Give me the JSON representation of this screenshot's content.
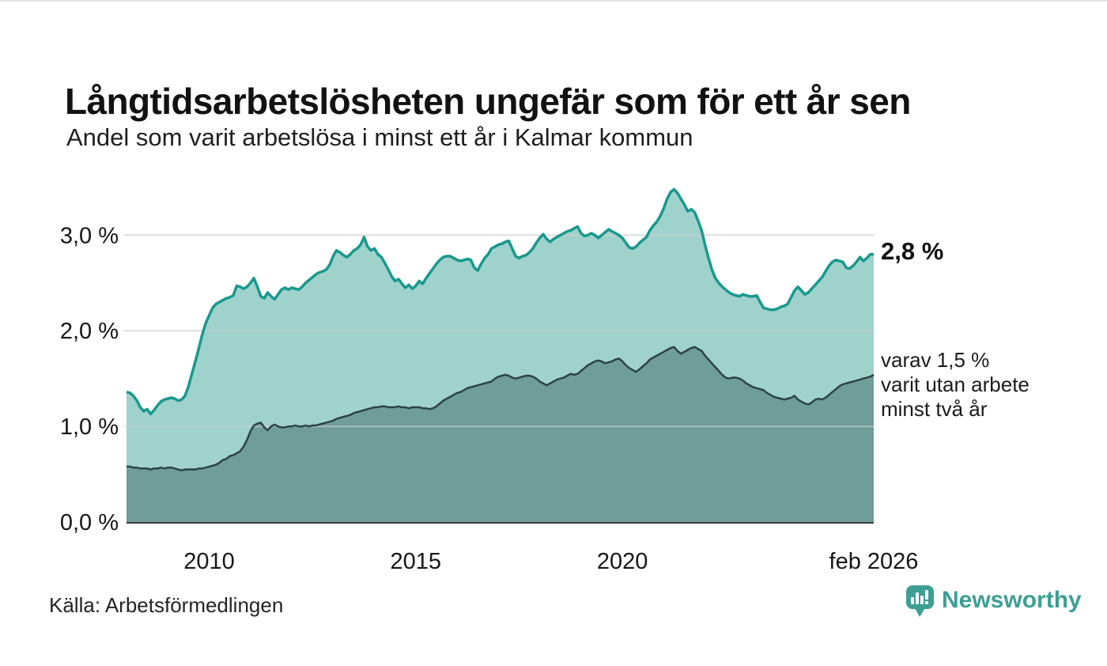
{
  "header": {
    "title": "Långtidsarbetslösheten ungefär som för ett år sen",
    "subtitle": "Andel som varit arbetslösa i minst ett år i Kalmar kommun"
  },
  "annotations": {
    "primary": "2,8 %",
    "secondary": "varav 1,5 %\nvarit utan arbete\nminst två år"
  },
  "footer": {
    "source": "Källa: Arbetsförmedlingen",
    "brand": "Newsworthy"
  },
  "colors": {
    "line_primary": "#19998d",
    "fill_primary": "#a0d2cc",
    "line_secondary": "#2d4344",
    "fill_secondary": "#6f9d99",
    "gridline": "rgba(204,204,204,0.65)",
    "axis_line": "#3b3b3b",
    "text": "#161616",
    "brand": "#3d9e94"
  },
  "chart_data": {
    "type": "area",
    "title": "Långtidsarbetslösheten ungefär som för ett år sen",
    "subtitle": "Andel som varit arbetslösa i minst ett år i Kalmar kommun",
    "grid": true,
    "legend_position": "right-annotations",
    "x_axis": {
      "range": [
        2008.0,
        2026.0833
      ],
      "ticks": [
        {
          "label": "2010",
          "x": 2010
        },
        {
          "label": "2015",
          "x": 2015
        },
        {
          "label": "2020",
          "x": 2020
        },
        {
          "label": "feb 2026",
          "x": 2026.0833
        }
      ]
    },
    "y_axis": {
      "unit": "%",
      "range": [
        0,
        3.54
      ],
      "ticks": [
        {
          "label": "0,0 %",
          "value": 0
        },
        {
          "label": "1,0 %",
          "value": 1
        },
        {
          "label": "2,0 %",
          "value": 2
        },
        {
          "label": "3,0 %",
          "value": 3
        }
      ]
    },
    "series": [
      {
        "name": "Andel som varit arbetslösa i minst ett år",
        "latest_label": "2,8 %",
        "latest_value": 2.8,
        "color": "#19998d",
        "fill": "#a0d2cc",
        "start_year": 2008,
        "step_months": 1,
        "values": [
          1.36,
          1.35,
          1.32,
          1.27,
          1.2,
          1.16,
          1.18,
          1.13,
          1.17,
          1.22,
          1.26,
          1.28,
          1.29,
          1.3,
          1.29,
          1.27,
          1.28,
          1.32,
          1.42,
          1.55,
          1.68,
          1.82,
          1.96,
          2.08,
          2.16,
          2.24,
          2.28,
          2.3,
          2.32,
          2.34,
          2.35,
          2.37,
          2.47,
          2.46,
          2.44,
          2.46,
          2.5,
          2.55,
          2.46,
          2.36,
          2.34,
          2.4,
          2.36,
          2.33,
          2.38,
          2.43,
          2.45,
          2.43,
          2.45,
          2.44,
          2.43,
          2.46,
          2.5,
          2.53,
          2.56,
          2.59,
          2.61,
          2.62,
          2.64,
          2.69,
          2.78,
          2.84,
          2.82,
          2.79,
          2.77,
          2.8,
          2.84,
          2.86,
          2.9,
          2.98,
          2.88,
          2.84,
          2.86,
          2.8,
          2.77,
          2.71,
          2.64,
          2.57,
          2.52,
          2.54,
          2.49,
          2.45,
          2.48,
          2.44,
          2.47,
          2.52,
          2.49,
          2.55,
          2.6,
          2.65,
          2.7,
          2.74,
          2.77,
          2.78,
          2.78,
          2.76,
          2.74,
          2.73,
          2.74,
          2.75,
          2.74,
          2.66,
          2.63,
          2.7,
          2.76,
          2.8,
          2.86,
          2.88,
          2.9,
          2.91,
          2.93,
          2.94,
          2.86,
          2.78,
          2.76,
          2.78,
          2.79,
          2.82,
          2.86,
          2.92,
          2.97,
          3.01,
          2.96,
          2.93,
          2.96,
          2.98,
          3.0,
          3.02,
          3.04,
          3.05,
          3.07,
          3.09,
          3.02,
          2.99,
          3.0,
          3.02,
          3.0,
          2.97,
          3.0,
          3.03,
          3.06,
          3.04,
          3.02,
          3.0,
          2.97,
          2.92,
          2.87,
          2.86,
          2.88,
          2.92,
          2.95,
          2.98,
          3.05,
          3.1,
          3.14,
          3.2,
          3.28,
          3.38,
          3.45,
          3.48,
          3.44,
          3.38,
          3.32,
          3.25,
          3.27,
          3.24,
          3.15,
          3.05,
          2.9,
          2.76,
          2.64,
          2.55,
          2.5,
          2.46,
          2.43,
          2.4,
          2.38,
          2.37,
          2.36,
          2.38,
          2.37,
          2.36,
          2.36,
          2.37,
          2.3,
          2.24,
          2.23,
          2.22,
          2.22,
          2.23,
          2.25,
          2.26,
          2.28,
          2.35,
          2.42,
          2.46,
          2.42,
          2.38,
          2.4,
          2.44,
          2.48,
          2.52,
          2.56,
          2.62,
          2.68,
          2.72,
          2.74,
          2.73,
          2.72,
          2.66,
          2.65,
          2.68,
          2.72,
          2.77,
          2.73,
          2.76,
          2.8,
          2.8
        ]
      },
      {
        "name": "varav utan arbete minst två år",
        "latest_label": "1,5 %",
        "latest_value": 1.5,
        "color": "#2d4344",
        "fill": "#6f9d99",
        "start_year": 2008,
        "step_months": 1,
        "values": [
          0.58,
          0.58,
          0.57,
          0.57,
          0.56,
          0.56,
          0.56,
          0.55,
          0.56,
          0.56,
          0.57,
          0.56,
          0.57,
          0.57,
          0.56,
          0.55,
          0.54,
          0.55,
          0.55,
          0.55,
          0.55,
          0.56,
          0.56,
          0.57,
          0.58,
          0.59,
          0.6,
          0.62,
          0.65,
          0.66,
          0.69,
          0.7,
          0.72,
          0.74,
          0.79,
          0.86,
          0.95,
          1.01,
          1.03,
          1.04,
          0.99,
          0.96,
          1.0,
          1.02,
          1.0,
          0.99,
          0.99,
          1.0,
          1.0,
          1.01,
          1.0,
          1.0,
          1.01,
          1.0,
          1.01,
          1.01,
          1.02,
          1.03,
          1.04,
          1.05,
          1.06,
          1.08,
          1.09,
          1.1,
          1.11,
          1.12,
          1.14,
          1.15,
          1.16,
          1.17,
          1.18,
          1.19,
          1.2,
          1.2,
          1.21,
          1.21,
          1.2,
          1.2,
          1.2,
          1.21,
          1.2,
          1.2,
          1.19,
          1.2,
          1.2,
          1.2,
          1.19,
          1.19,
          1.18,
          1.19,
          1.21,
          1.24,
          1.27,
          1.29,
          1.31,
          1.33,
          1.35,
          1.36,
          1.38,
          1.4,
          1.41,
          1.42,
          1.43,
          1.44,
          1.45,
          1.46,
          1.47,
          1.5,
          1.52,
          1.53,
          1.54,
          1.53,
          1.51,
          1.5,
          1.51,
          1.52,
          1.53,
          1.53,
          1.52,
          1.5,
          1.47,
          1.45,
          1.43,
          1.45,
          1.47,
          1.49,
          1.5,
          1.51,
          1.53,
          1.55,
          1.54,
          1.55,
          1.58,
          1.61,
          1.64,
          1.66,
          1.68,
          1.69,
          1.68,
          1.66,
          1.67,
          1.68,
          1.7,
          1.71,
          1.68,
          1.64,
          1.61,
          1.59,
          1.57,
          1.6,
          1.63,
          1.66,
          1.7,
          1.72,
          1.74,
          1.76,
          1.78,
          1.8,
          1.82,
          1.83,
          1.79,
          1.76,
          1.78,
          1.8,
          1.82,
          1.83,
          1.81,
          1.79,
          1.74,
          1.7,
          1.66,
          1.62,
          1.58,
          1.54,
          1.51,
          1.5,
          1.51,
          1.51,
          1.5,
          1.48,
          1.45,
          1.43,
          1.41,
          1.4,
          1.39,
          1.38,
          1.35,
          1.33,
          1.31,
          1.3,
          1.29,
          1.28,
          1.29,
          1.3,
          1.32,
          1.28,
          1.26,
          1.24,
          1.23,
          1.25,
          1.28,
          1.29,
          1.28,
          1.3,
          1.33,
          1.36,
          1.39,
          1.42,
          1.44,
          1.45,
          1.46,
          1.47,
          1.48,
          1.49,
          1.5,
          1.51,
          1.52,
          1.54
        ]
      }
    ]
  }
}
